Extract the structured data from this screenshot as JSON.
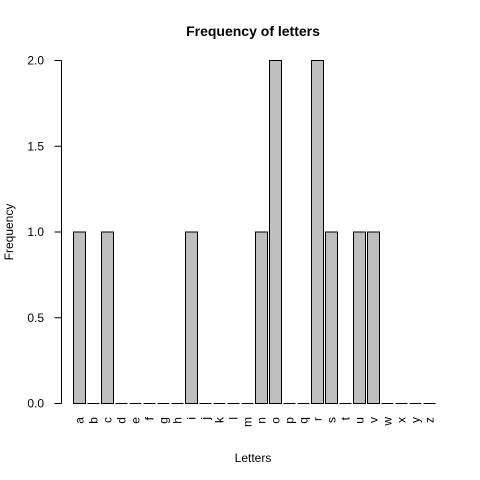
{
  "chart_data": {
    "type": "bar",
    "title": "Frequency of letters",
    "xlabel": "Letters",
    "ylabel": "Frequency",
    "categories": [
      "a",
      "b",
      "c",
      "d",
      "e",
      "f",
      "g",
      "h",
      "i",
      "j",
      "k",
      "l",
      "m",
      "n",
      "o",
      "p",
      "q",
      "r",
      "s",
      "t",
      "u",
      "v",
      "w",
      "x",
      "y",
      "z"
    ],
    "values": [
      1,
      0,
      1,
      0,
      0,
      0,
      0,
      0,
      1,
      0,
      0,
      0,
      0,
      1,
      2,
      0,
      0,
      2,
      1,
      0,
      1,
      1,
      0,
      0,
      0,
      0
    ],
    "ylim": [
      0,
      2
    ],
    "yticks": [
      0.0,
      0.5,
      1.0,
      1.5,
      2.0
    ],
    "ytick_labels": [
      "0.0",
      "0.5",
      "1.0",
      "1.5",
      "2.0"
    ],
    "bar_color": "#bebebe",
    "grid": false,
    "legend": "none"
  }
}
